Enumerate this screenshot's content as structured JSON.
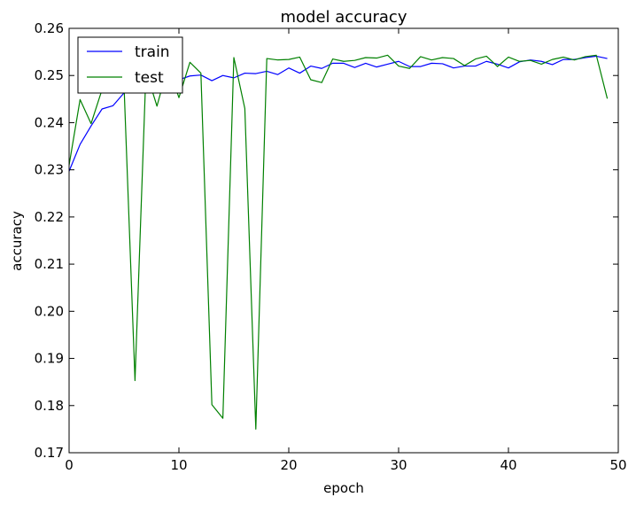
{
  "chart_data": {
    "type": "line",
    "title": "model accuracy",
    "xlabel": "epoch",
    "ylabel": "accuracy",
    "xlim": [
      0,
      50
    ],
    "ylim": [
      0.17,
      0.26
    ],
    "xticks": [
      0,
      10,
      20,
      30,
      40,
      50
    ],
    "xtick_labels": [
      "0",
      "10",
      "20",
      "30",
      "40",
      "50"
    ],
    "yticks": [
      0.17,
      0.18,
      0.19,
      0.2,
      0.21,
      0.22,
      0.23,
      0.24,
      0.25,
      0.26
    ],
    "ytick_labels": [
      "0.17",
      "0.18",
      "0.19",
      "0.20",
      "0.21",
      "0.22",
      "0.23",
      "0.24",
      "0.25",
      "0.26"
    ],
    "grid": false,
    "legend_position": "top-left",
    "x": [
      0,
      1,
      2,
      3,
      4,
      5,
      6,
      7,
      8,
      9,
      10,
      11,
      12,
      13,
      14,
      15,
      16,
      17,
      18,
      19,
      20,
      21,
      22,
      23,
      24,
      25,
      26,
      27,
      28,
      29,
      30,
      31,
      32,
      33,
      34,
      35,
      36,
      37,
      38,
      39,
      40,
      41,
      42,
      43,
      44,
      45,
      46,
      47,
      48,
      49
    ],
    "series": [
      {
        "name": "train",
        "color": "#0000ff",
        "values": [
          0.2297,
          0.2354,
          0.2393,
          0.2429,
          0.2436,
          0.2463,
          0.2472,
          0.2477,
          0.2484,
          0.2488,
          0.2491,
          0.2499,
          0.2501,
          0.2489,
          0.25,
          0.2495,
          0.2505,
          0.2504,
          0.2509,
          0.2502,
          0.2516,
          0.2505,
          0.252,
          0.2515,
          0.2526,
          0.2526,
          0.2517,
          0.2526,
          0.2518,
          0.2524,
          0.253,
          0.2519,
          0.2519,
          0.2526,
          0.2525,
          0.2516,
          0.252,
          0.252,
          0.253,
          0.2524,
          0.2516,
          0.2529,
          0.2533,
          0.253,
          0.2523,
          0.2534,
          0.2534,
          0.2538,
          0.2541,
          0.2536
        ]
      },
      {
        "name": "test",
        "color": "#008000",
        "values": [
          0.231,
          0.2449,
          0.2398,
          0.247,
          0.248,
          0.248,
          0.1853,
          0.251,
          0.2435,
          0.252,
          0.2453,
          0.2528,
          0.2505,
          0.1802,
          0.1773,
          0.2538,
          0.243,
          0.175,
          0.2536,
          0.2533,
          0.2534,
          0.2539,
          0.2491,
          0.2485,
          0.2535,
          0.253,
          0.2532,
          0.2538,
          0.2537,
          0.2543,
          0.252,
          0.2515,
          0.254,
          0.2533,
          0.2538,
          0.2536,
          0.2521,
          0.2535,
          0.2541,
          0.2519,
          0.2539,
          0.253,
          0.2532,
          0.2524,
          0.2534,
          0.2539,
          0.2533,
          0.254,
          0.2543,
          0.2451
        ]
      }
    ]
  }
}
